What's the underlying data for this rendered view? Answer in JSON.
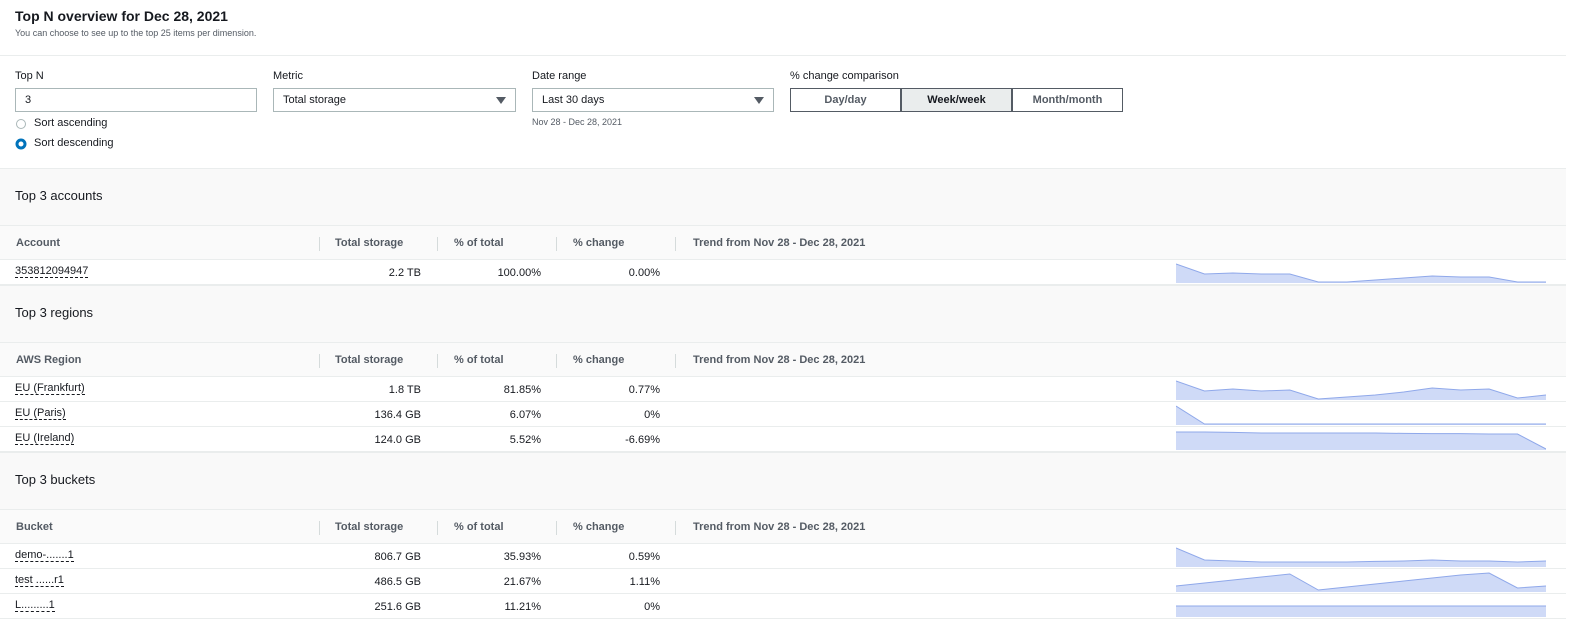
{
  "header": {
    "title": "Top N overview for Dec 28, 2021",
    "subtitle": "You can choose to see up to the top 25 items per dimension."
  },
  "controls": {
    "top_n": {
      "label": "Top N",
      "value": "3"
    },
    "sort": {
      "options": [
        "Sort ascending",
        "Sort descending"
      ],
      "selected": 1
    },
    "metric": {
      "label": "Metric",
      "value": "Total storage"
    },
    "date_range": {
      "label": "Date range",
      "value": "Last 30 days",
      "hint": "Nov 28 - Dec 28, 2021"
    },
    "comparison": {
      "label": "% change comparison",
      "options": [
        "Day/day",
        "Week/week",
        "Month/month"
      ],
      "selected": 1
    }
  },
  "sections": [
    {
      "title": "Top 3 accounts",
      "columns": [
        "Account",
        "Total storage",
        "% of total",
        "% change",
        "Trend from Nov 28 - Dec 28, 2021"
      ],
      "rows": [
        {
          "name": "353812094947",
          "total": "2.2 TB",
          "percent": "100.00%",
          "change": "0.00%",
          "trend": [
            95,
            45,
            50,
            45,
            45,
            5,
            5,
            15,
            25,
            35,
            30,
            30,
            5,
            5
          ]
        }
      ]
    },
    {
      "title": "Top 3 regions",
      "columns": [
        "AWS Region",
        "Total storage",
        "% of total",
        "% change",
        "Trend from Nov 28 - Dec 28, 2021"
      ],
      "rows": [
        {
          "name": "EU (Frankfurt)",
          "total": "1.8 TB",
          "percent": "81.85%",
          "change": "0.77%",
          "trend": [
            95,
            45,
            55,
            45,
            50,
            5,
            15,
            25,
            40,
            60,
            50,
            55,
            10,
            25
          ]
        },
        {
          "name": "EU (Paris)",
          "total": "136.4 GB",
          "percent": "6.07%",
          "change": "0%",
          "trend": [
            95,
            5,
            5,
            5,
            5,
            5,
            5,
            5,
            5,
            5,
            5,
            5,
            5,
            5
          ]
        },
        {
          "name": "EU (Ireland)",
          "total": "124.0 GB",
          "percent": "5.52%",
          "change": "-6.69%",
          "trend": [
            90,
            90,
            88,
            85,
            85,
            85,
            85,
            85,
            83,
            82,
            82,
            80,
            80,
            5
          ]
        }
      ]
    },
    {
      "title": "Top 3 buckets",
      "columns": [
        "Bucket",
        "Total storage",
        "% of total",
        "% change",
        "Trend from Nov 28 - Dec 28, 2021"
      ],
      "rows": [
        {
          "name": "demo-.......1",
          "total": "806.7 GB",
          "percent": "35.93%",
          "change": "0.59%",
          "trend": [
            95,
            35,
            30,
            25,
            25,
            25,
            25,
            28,
            30,
            35,
            30,
            30,
            25,
            30
          ]
        },
        {
          "name": "test ......r1",
          "total": "486.5 GB",
          "percent": "21.67%",
          "change": "1.11%",
          "trend": [
            30,
            45,
            60,
            75,
            90,
            10,
            25,
            40,
            55,
            70,
            85,
            95,
            20,
            30
          ]
        },
        {
          "name": "L.........1",
          "total": "251.6 GB",
          "percent": "11.21%",
          "change": "0%",
          "trend": [
            55,
            55,
            55,
            55,
            55,
            55,
            55,
            55,
            55,
            55,
            55,
            55,
            55,
            55
          ]
        }
      ]
    }
  ]
}
